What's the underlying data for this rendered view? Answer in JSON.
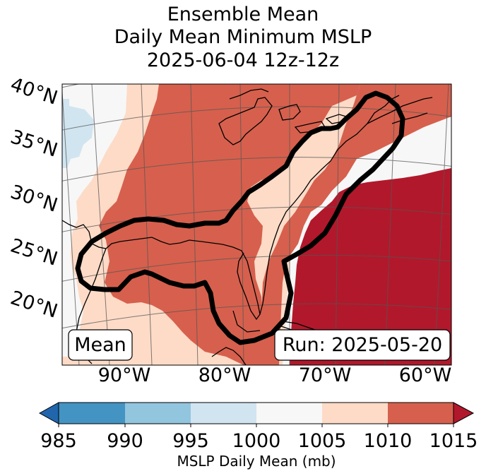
{
  "title": {
    "line1": "Ensemble Mean",
    "line2": "Daily Mean Minimum MSLP",
    "line3": "2025-06-04 12z-12z"
  },
  "map": {
    "lat_labels": [
      "40°N",
      "35°N",
      "30°N",
      "25°N",
      "20°N"
    ],
    "lon_labels": [
      "90°W",
      "80°W",
      "70°W",
      "60°W"
    ],
    "mean_box": "Mean",
    "run_box": "Run: 2025-05-20",
    "colors": {
      "c985": "#2166ac",
      "c985_990": "#4393c3",
      "c990_995": "#92c5de",
      "c995_1000": "#d1e5f0",
      "c1000_1005": "#f7f7f7",
      "c1005_1010": "#fddbc7",
      "c1010_1015": "#d6604d",
      "c1015": "#b2182b"
    }
  },
  "colorbar": {
    "ticks": [
      "985",
      "990",
      "995",
      "1000",
      "1005",
      "1010",
      "1015"
    ],
    "label": "MSLP Daily Mean (mb)"
  }
}
